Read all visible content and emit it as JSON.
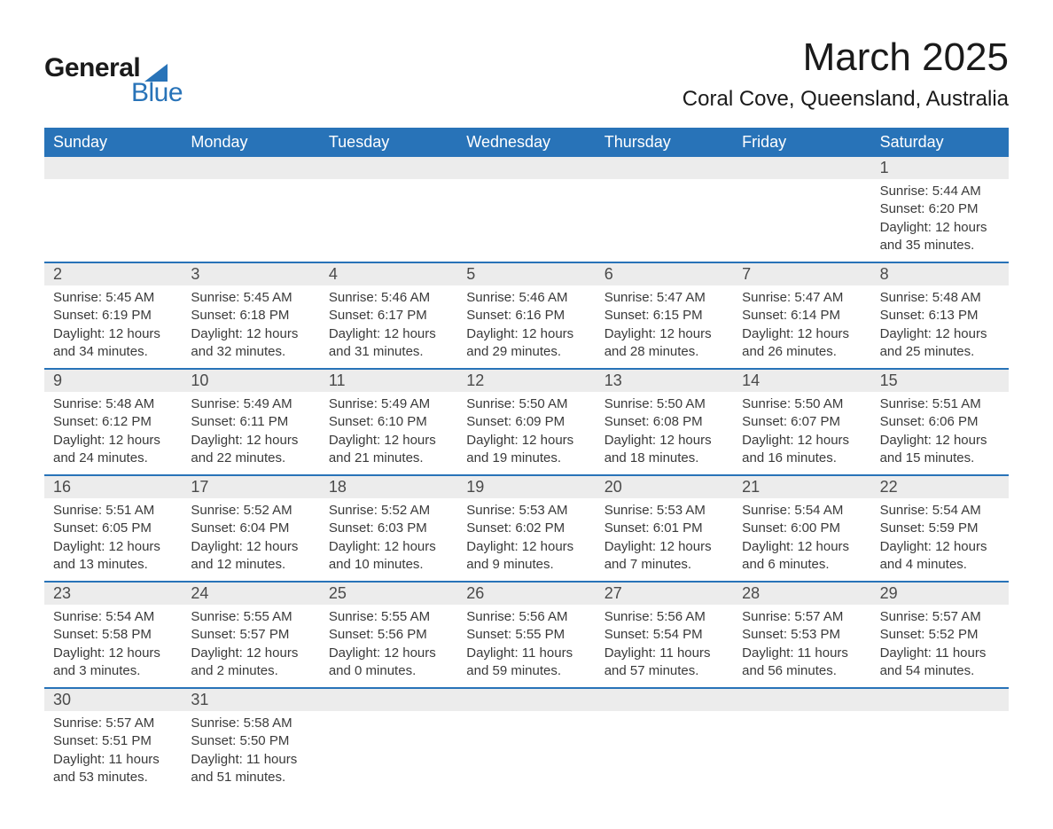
{
  "brand": {
    "name_part1": "General",
    "name_part2": "Blue",
    "primary_color": "#2873b8"
  },
  "title": "March 2025",
  "location": "Coral Cove, Queensland, Australia",
  "day_headers": [
    "Sunday",
    "Monday",
    "Tuesday",
    "Wednesday",
    "Thursday",
    "Friday",
    "Saturday"
  ],
  "colors": {
    "header_bg": "#2873b8",
    "header_text": "#ffffff",
    "daynum_bg": "#ececec",
    "text": "#3a3a3a",
    "row_border": "#2873b8",
    "page_bg": "#ffffff"
  },
  "typography": {
    "title_fontsize": 44,
    "location_fontsize": 24,
    "header_fontsize": 18,
    "daynum_fontsize": 18,
    "body_fontsize": 15
  },
  "weeks": [
    [
      null,
      null,
      null,
      null,
      null,
      null,
      {
        "day": "1",
        "sunrise": "Sunrise: 5:44 AM",
        "sunset": "Sunset: 6:20 PM",
        "daylight1": "Daylight: 12 hours",
        "daylight2": "and 35 minutes."
      }
    ],
    [
      {
        "day": "2",
        "sunrise": "Sunrise: 5:45 AM",
        "sunset": "Sunset: 6:19 PM",
        "daylight1": "Daylight: 12 hours",
        "daylight2": "and 34 minutes."
      },
      {
        "day": "3",
        "sunrise": "Sunrise: 5:45 AM",
        "sunset": "Sunset: 6:18 PM",
        "daylight1": "Daylight: 12 hours",
        "daylight2": "and 32 minutes."
      },
      {
        "day": "4",
        "sunrise": "Sunrise: 5:46 AM",
        "sunset": "Sunset: 6:17 PM",
        "daylight1": "Daylight: 12 hours",
        "daylight2": "and 31 minutes."
      },
      {
        "day": "5",
        "sunrise": "Sunrise: 5:46 AM",
        "sunset": "Sunset: 6:16 PM",
        "daylight1": "Daylight: 12 hours",
        "daylight2": "and 29 minutes."
      },
      {
        "day": "6",
        "sunrise": "Sunrise: 5:47 AM",
        "sunset": "Sunset: 6:15 PM",
        "daylight1": "Daylight: 12 hours",
        "daylight2": "and 28 minutes."
      },
      {
        "day": "7",
        "sunrise": "Sunrise: 5:47 AM",
        "sunset": "Sunset: 6:14 PM",
        "daylight1": "Daylight: 12 hours",
        "daylight2": "and 26 minutes."
      },
      {
        "day": "8",
        "sunrise": "Sunrise: 5:48 AM",
        "sunset": "Sunset: 6:13 PM",
        "daylight1": "Daylight: 12 hours",
        "daylight2": "and 25 minutes."
      }
    ],
    [
      {
        "day": "9",
        "sunrise": "Sunrise: 5:48 AM",
        "sunset": "Sunset: 6:12 PM",
        "daylight1": "Daylight: 12 hours",
        "daylight2": "and 24 minutes."
      },
      {
        "day": "10",
        "sunrise": "Sunrise: 5:49 AM",
        "sunset": "Sunset: 6:11 PM",
        "daylight1": "Daylight: 12 hours",
        "daylight2": "and 22 minutes."
      },
      {
        "day": "11",
        "sunrise": "Sunrise: 5:49 AM",
        "sunset": "Sunset: 6:10 PM",
        "daylight1": "Daylight: 12 hours",
        "daylight2": "and 21 minutes."
      },
      {
        "day": "12",
        "sunrise": "Sunrise: 5:50 AM",
        "sunset": "Sunset: 6:09 PM",
        "daylight1": "Daylight: 12 hours",
        "daylight2": "and 19 minutes."
      },
      {
        "day": "13",
        "sunrise": "Sunrise: 5:50 AM",
        "sunset": "Sunset: 6:08 PM",
        "daylight1": "Daylight: 12 hours",
        "daylight2": "and 18 minutes."
      },
      {
        "day": "14",
        "sunrise": "Sunrise: 5:50 AM",
        "sunset": "Sunset: 6:07 PM",
        "daylight1": "Daylight: 12 hours",
        "daylight2": "and 16 minutes."
      },
      {
        "day": "15",
        "sunrise": "Sunrise: 5:51 AM",
        "sunset": "Sunset: 6:06 PM",
        "daylight1": "Daylight: 12 hours",
        "daylight2": "and 15 minutes."
      }
    ],
    [
      {
        "day": "16",
        "sunrise": "Sunrise: 5:51 AM",
        "sunset": "Sunset: 6:05 PM",
        "daylight1": "Daylight: 12 hours",
        "daylight2": "and 13 minutes."
      },
      {
        "day": "17",
        "sunrise": "Sunrise: 5:52 AM",
        "sunset": "Sunset: 6:04 PM",
        "daylight1": "Daylight: 12 hours",
        "daylight2": "and 12 minutes."
      },
      {
        "day": "18",
        "sunrise": "Sunrise: 5:52 AM",
        "sunset": "Sunset: 6:03 PM",
        "daylight1": "Daylight: 12 hours",
        "daylight2": "and 10 minutes."
      },
      {
        "day": "19",
        "sunrise": "Sunrise: 5:53 AM",
        "sunset": "Sunset: 6:02 PM",
        "daylight1": "Daylight: 12 hours",
        "daylight2": "and 9 minutes."
      },
      {
        "day": "20",
        "sunrise": "Sunrise: 5:53 AM",
        "sunset": "Sunset: 6:01 PM",
        "daylight1": "Daylight: 12 hours",
        "daylight2": "and 7 minutes."
      },
      {
        "day": "21",
        "sunrise": "Sunrise: 5:54 AM",
        "sunset": "Sunset: 6:00 PM",
        "daylight1": "Daylight: 12 hours",
        "daylight2": "and 6 minutes."
      },
      {
        "day": "22",
        "sunrise": "Sunrise: 5:54 AM",
        "sunset": "Sunset: 5:59 PM",
        "daylight1": "Daylight: 12 hours",
        "daylight2": "and 4 minutes."
      }
    ],
    [
      {
        "day": "23",
        "sunrise": "Sunrise: 5:54 AM",
        "sunset": "Sunset: 5:58 PM",
        "daylight1": "Daylight: 12 hours",
        "daylight2": "and 3 minutes."
      },
      {
        "day": "24",
        "sunrise": "Sunrise: 5:55 AM",
        "sunset": "Sunset: 5:57 PM",
        "daylight1": "Daylight: 12 hours",
        "daylight2": "and 2 minutes."
      },
      {
        "day": "25",
        "sunrise": "Sunrise: 5:55 AM",
        "sunset": "Sunset: 5:56 PM",
        "daylight1": "Daylight: 12 hours",
        "daylight2": "and 0 minutes."
      },
      {
        "day": "26",
        "sunrise": "Sunrise: 5:56 AM",
        "sunset": "Sunset: 5:55 PM",
        "daylight1": "Daylight: 11 hours",
        "daylight2": "and 59 minutes."
      },
      {
        "day": "27",
        "sunrise": "Sunrise: 5:56 AM",
        "sunset": "Sunset: 5:54 PM",
        "daylight1": "Daylight: 11 hours",
        "daylight2": "and 57 minutes."
      },
      {
        "day": "28",
        "sunrise": "Sunrise: 5:57 AM",
        "sunset": "Sunset: 5:53 PM",
        "daylight1": "Daylight: 11 hours",
        "daylight2": "and 56 minutes."
      },
      {
        "day": "29",
        "sunrise": "Sunrise: 5:57 AM",
        "sunset": "Sunset: 5:52 PM",
        "daylight1": "Daylight: 11 hours",
        "daylight2": "and 54 minutes."
      }
    ],
    [
      {
        "day": "30",
        "sunrise": "Sunrise: 5:57 AM",
        "sunset": "Sunset: 5:51 PM",
        "daylight1": "Daylight: 11 hours",
        "daylight2": "and 53 minutes."
      },
      {
        "day": "31",
        "sunrise": "Sunrise: 5:58 AM",
        "sunset": "Sunset: 5:50 PM",
        "daylight1": "Daylight: 11 hours",
        "daylight2": "and 51 minutes."
      },
      null,
      null,
      null,
      null,
      null
    ]
  ]
}
